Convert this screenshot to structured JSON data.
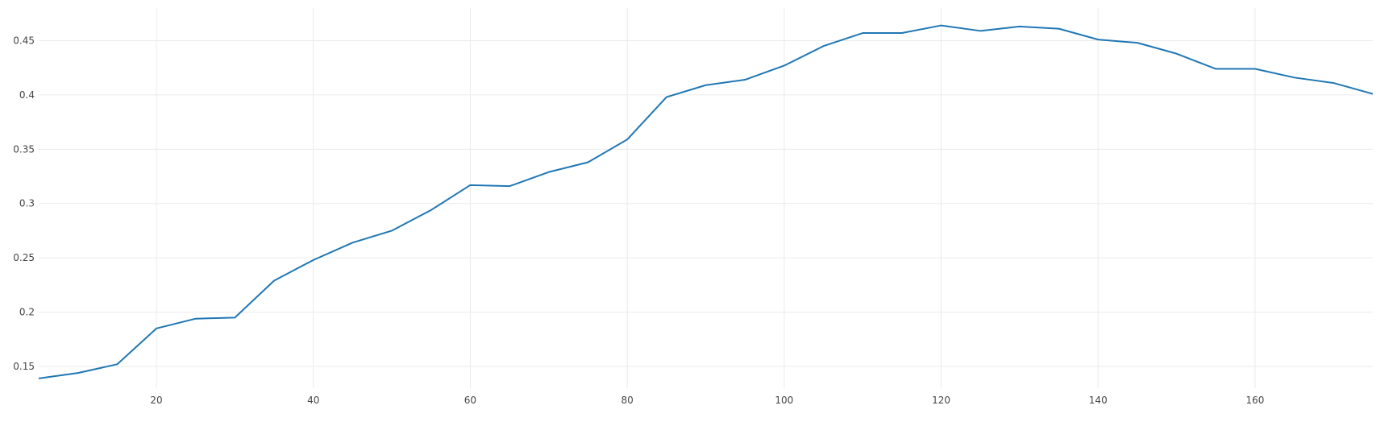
{
  "chart_data": {
    "type": "line",
    "title": "",
    "xlabel": "",
    "ylabel": "",
    "xlim": [
      5,
      175
    ],
    "ylim": [
      0.13,
      0.48
    ],
    "xticks": [
      20,
      40,
      60,
      80,
      100,
      120,
      140,
      160
    ],
    "xtick_labels": [
      "20",
      "40",
      "60",
      "80",
      "100",
      "120",
      "140",
      "160"
    ],
    "yticks": [
      0.15,
      0.2,
      0.25,
      0.3,
      0.35,
      0.4,
      0.45
    ],
    "ytick_labels": [
      "0.15",
      "0.2",
      "0.25",
      "0.3",
      "0.35",
      "0.4",
      "0.45"
    ],
    "grid": true,
    "legend": false,
    "series": [
      {
        "color": "#1f77b4",
        "x": [
          5,
          10,
          15,
          20,
          25,
          30,
          35,
          40,
          45,
          50,
          55,
          60,
          65,
          70,
          75,
          80,
          85,
          90,
          95,
          100,
          105,
          110,
          115,
          120,
          125,
          130,
          135,
          140,
          145,
          150,
          155,
          160,
          165,
          170,
          175
        ],
        "y": [
          0.139,
          0.144,
          0.152,
          0.185,
          0.194,
          0.195,
          0.229,
          0.248,
          0.264,
          0.275,
          0.294,
          0.317,
          0.316,
          0.329,
          0.338,
          0.359,
          0.398,
          0.409,
          0.414,
          0.427,
          0.445,
          0.457,
          0.457,
          0.464,
          0.459,
          0.463,
          0.461,
          0.451,
          0.448,
          0.438,
          0.424,
          0.424,
          0.416,
          0.411,
          0.401
        ]
      }
    ]
  }
}
